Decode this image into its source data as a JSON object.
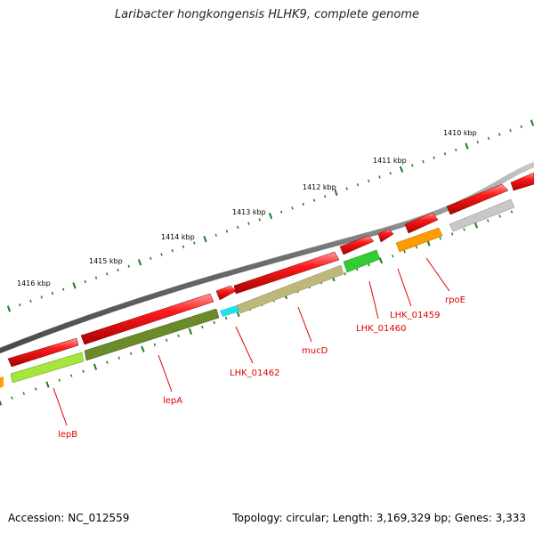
{
  "title": "Laribacter hongkongensis HLHK9, complete genome",
  "footer": {
    "accession": "Accession: NC_012559",
    "summary": "Topology: circular; Length: 3,169,329 bp; Genes: 3,333"
  },
  "colors": {
    "backbone": "#7a7a7a",
    "tick": "#1e7a1e",
    "strand": "#ff0000",
    "label": "#e00000",
    "gene_lepB": "#a6e63c",
    "gene_lepA": "#6b8a2a",
    "gene_LHK_01462": "#22e0e8",
    "gene_mucD": "#bdb77a",
    "gene_LHK_01460": "#33cc33",
    "gene_rpoE": "#ff9a00",
    "gene_gray": "#c8c8c8",
    "gene_left_orange": "#ffa000"
  },
  "axis": {
    "kbp_labels": [
      "1410 kbp",
      "1411 kbp",
      "1412 kbp",
      "1413 kbp",
      "1414 kbp",
      "1415 kbp",
      "1416 kbp"
    ]
  },
  "genes": {
    "labels": [
      "lepB",
      "lepA",
      "LHK_01462",
      "mucD",
      "LHK_01460",
      "LHK_01459",
      "rpoE"
    ]
  }
}
